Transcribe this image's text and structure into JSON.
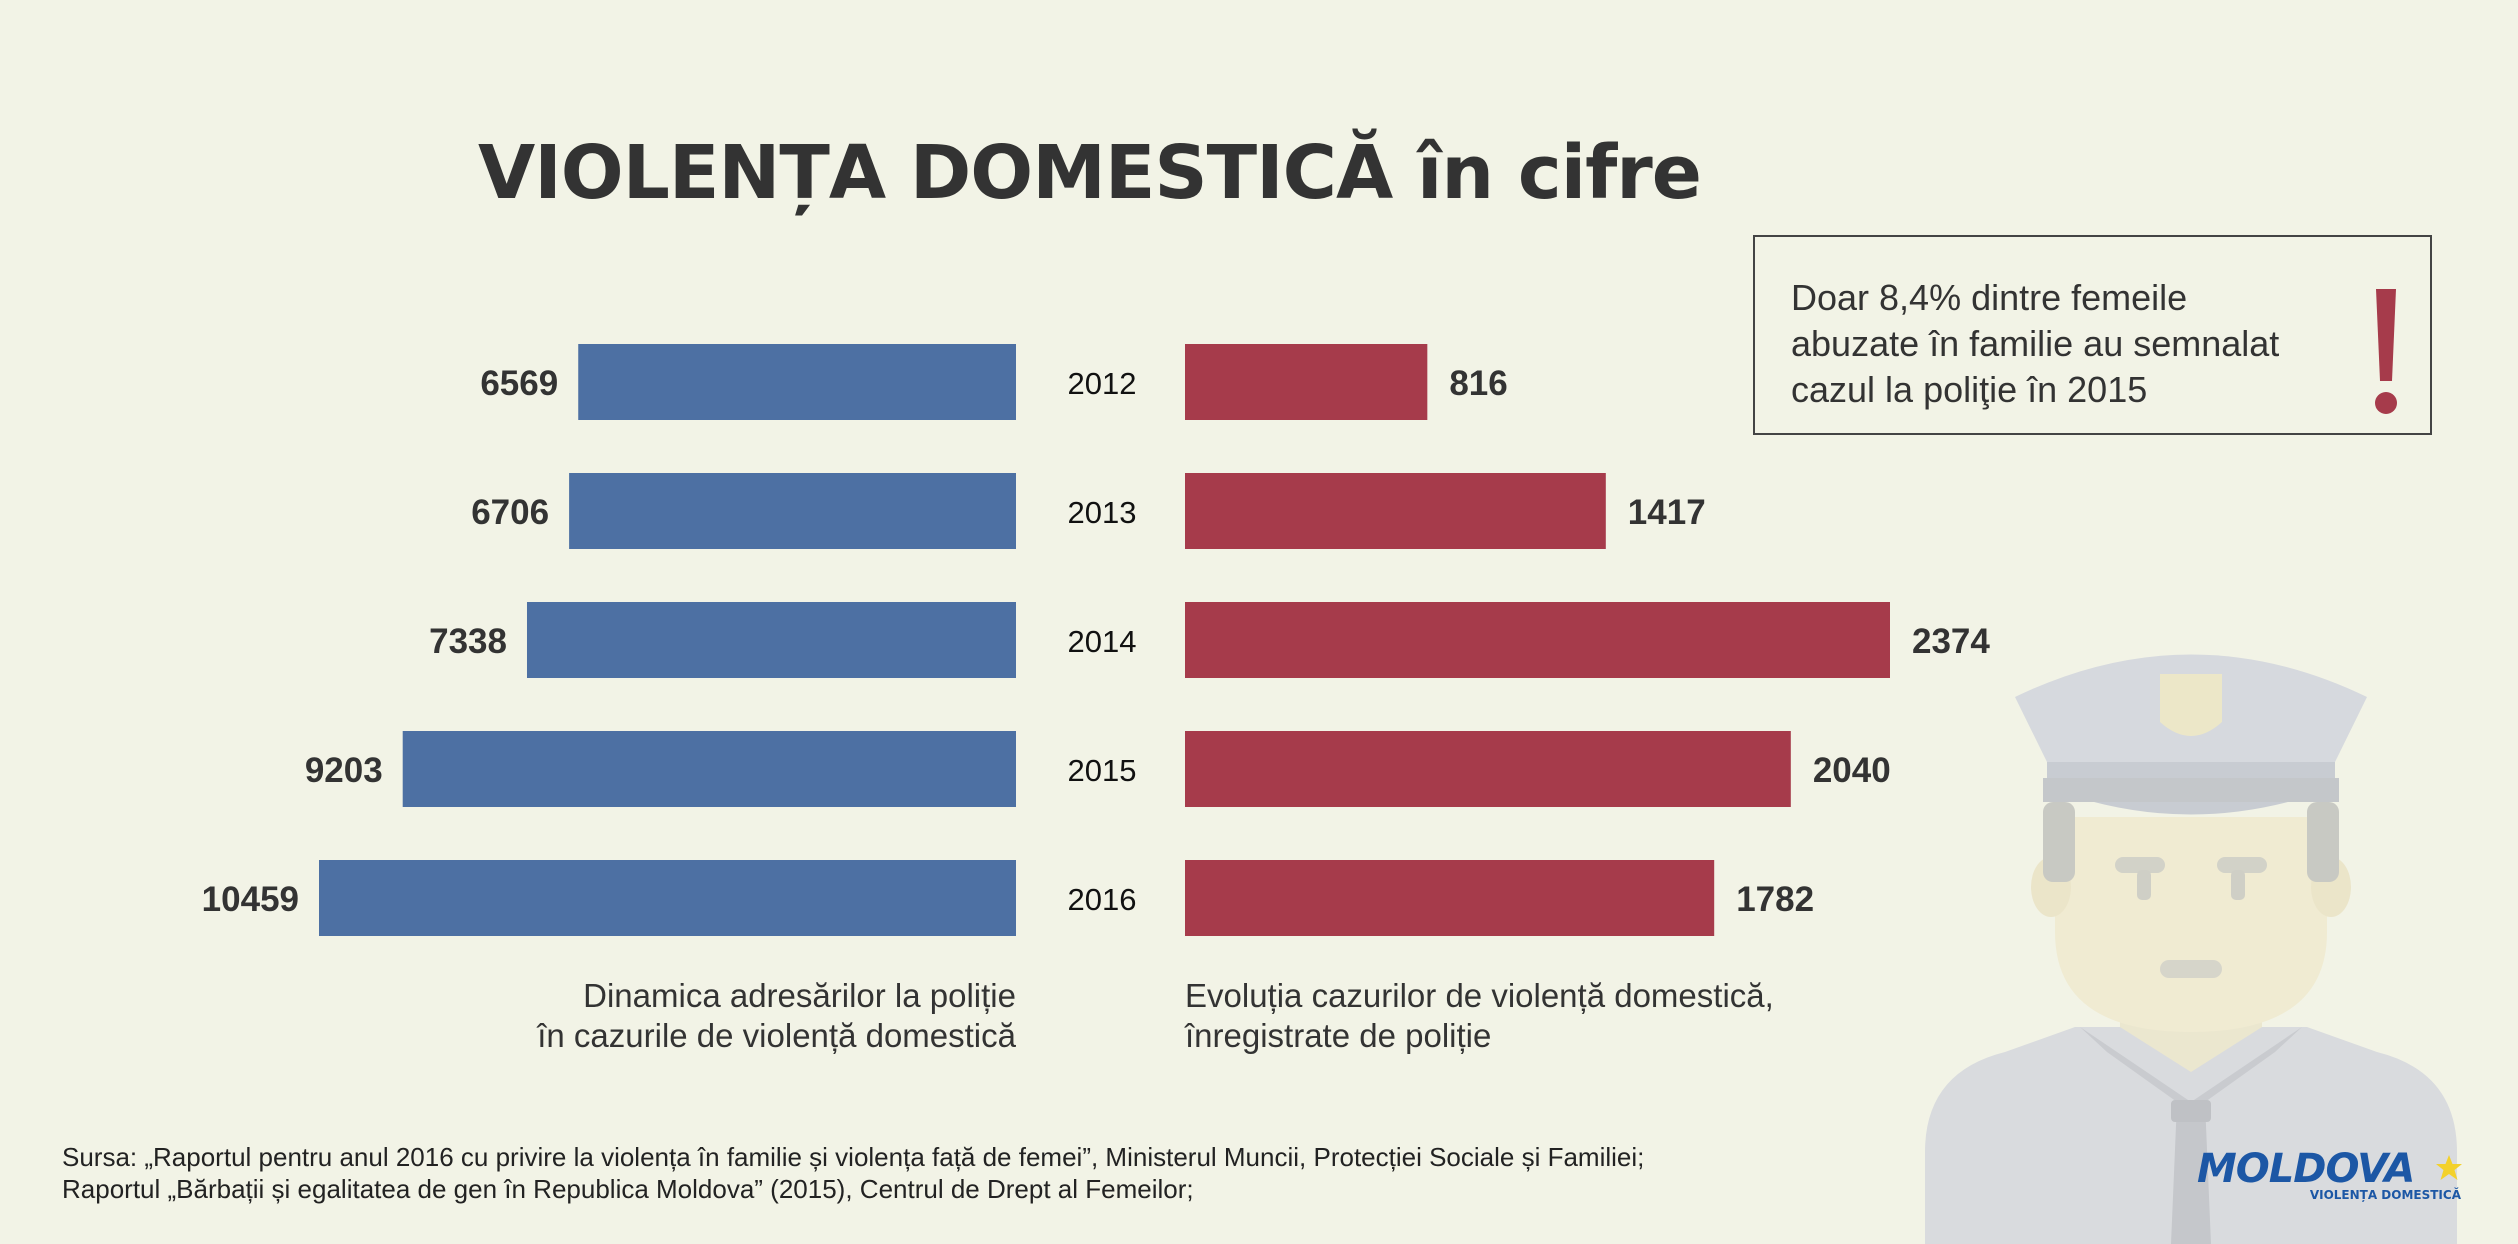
{
  "title": "VIOLENȚA DOMESTICĂ în cifre",
  "chart_data": {
    "type": "bar",
    "categories": [
      "2012",
      "2013",
      "2014",
      "2015",
      "2016"
    ],
    "series": [
      {
        "values": [
          6569,
          6706,
          7338,
          9203,
          10459
        ],
        "color": "#4d70a3",
        "direction": "left",
        "caption": [
          "Dinamica adresărilor la poliție",
          "în cazurile de violență domestică"
        ]
      },
      {
        "values": [
          816,
          1417,
          2374,
          2040,
          1782
        ],
        "color": "#a63b4b",
        "direction": "right",
        "caption": [
          "Evoluția cazurilor de violență domestică,",
          "înregistrate de poliție"
        ]
      }
    ]
  },
  "note": {
    "lines": [
      "Doar 8,4% dintre femeile",
      "abuzate în familie au semnalat",
      "cazul la poliţie în 2015"
    ],
    "mark_color": "#a63b4b"
  },
  "source": {
    "lines": [
      "Sursa: „Raportul pentru anul 2016 cu privire la violența în familie și violența față de femei”, Ministerul Muncii, Protecției Sociale și Familiei;",
      "Raportul „Bărbații și egalitatea de gen în Republica Moldova” (2015), Centrul de Drept al Femeilor;"
    ]
  },
  "logo": {
    "name": "MOLDOVA",
    "tagline": "VIOLENȚA DOMESTICĂ",
    "color": "#1c57a5",
    "star_color": "#f3d12b"
  },
  "illustration": "police-officer-icon"
}
